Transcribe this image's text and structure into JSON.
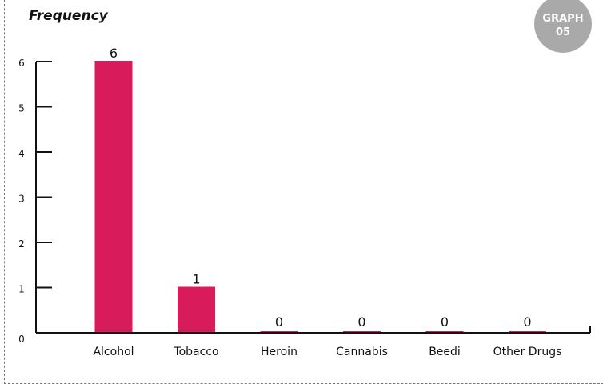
{
  "chart_data": {
    "type": "bar",
    "title": "Frequency",
    "badge_line1": "GRAPH",
    "badge_line2": "05",
    "categories": [
      "Alcohol",
      "Tobacco",
      "Heroin",
      "Cannabis",
      "Beedi",
      "Other Drugs"
    ],
    "values": [
      6,
      1,
      0,
      0,
      0,
      0
    ],
    "data_labels": [
      "6",
      "1",
      "0",
      "0",
      "0",
      "0"
    ],
    "y_ticks": [
      "0",
      "1",
      "2",
      "3",
      "4",
      "5",
      "6"
    ],
    "ylim": [
      0,
      6
    ],
    "bar_color": "#d81b5a",
    "grid": false
  }
}
